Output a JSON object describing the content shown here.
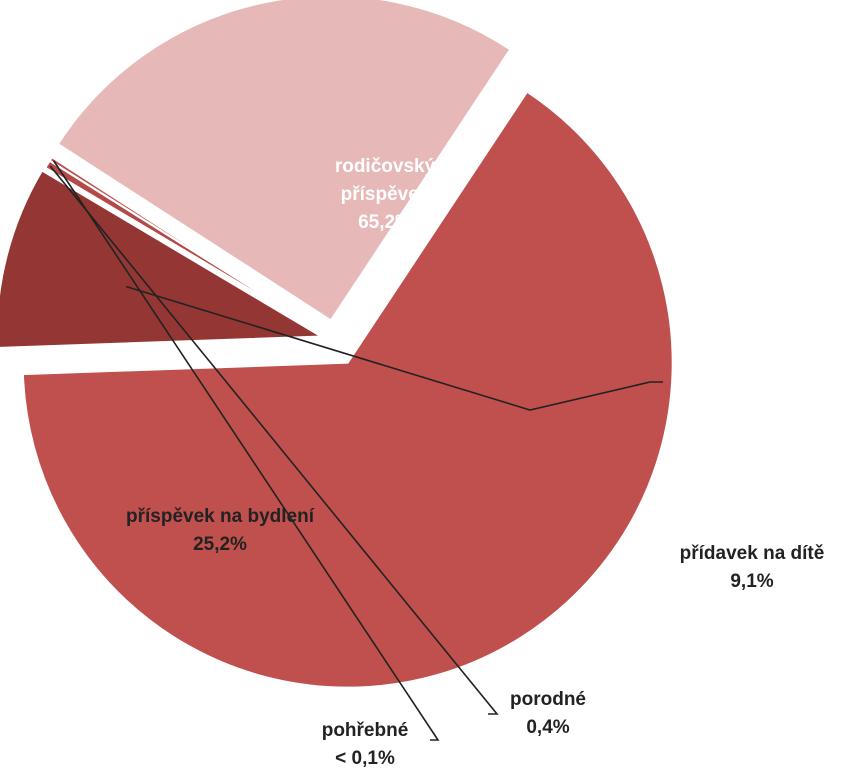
{
  "chart_data": {
    "type": "pie",
    "title": "",
    "legend": "none",
    "slices": [
      {
        "name": "rodičovský příspěvek",
        "name_lines": [
          "rodičovský",
          "příspěvek"
        ],
        "value": 65.2,
        "label": "65,2%",
        "color": "#C0504D",
        "label_color": "#ffffff"
      },
      {
        "name": "přídavek na dítě",
        "name_lines": [
          "přídavek na dítě"
        ],
        "value": 9.1,
        "label": "9,1%",
        "color": "#943634",
        "label_color": "#222222"
      },
      {
        "name": "porodné",
        "name_lines": [
          "porodné"
        ],
        "value": 0.4,
        "label": "0,4%",
        "color": "#B34A47",
        "label_color": "#222222"
      },
      {
        "name": "pohřebné",
        "name_lines": [
          "pohřebné"
        ],
        "value": 0.05,
        "label": "< 0,1%",
        "color": "#C0504D",
        "label_color": "#222222"
      },
      {
        "name": "příspěvek na bydlení",
        "name_lines": [
          "příspěvek na bydlení"
        ],
        "value": 25.2,
        "label": "25,2%",
        "color": "#E6B9B8",
        "label_color": "#222222"
      }
    ]
  }
}
